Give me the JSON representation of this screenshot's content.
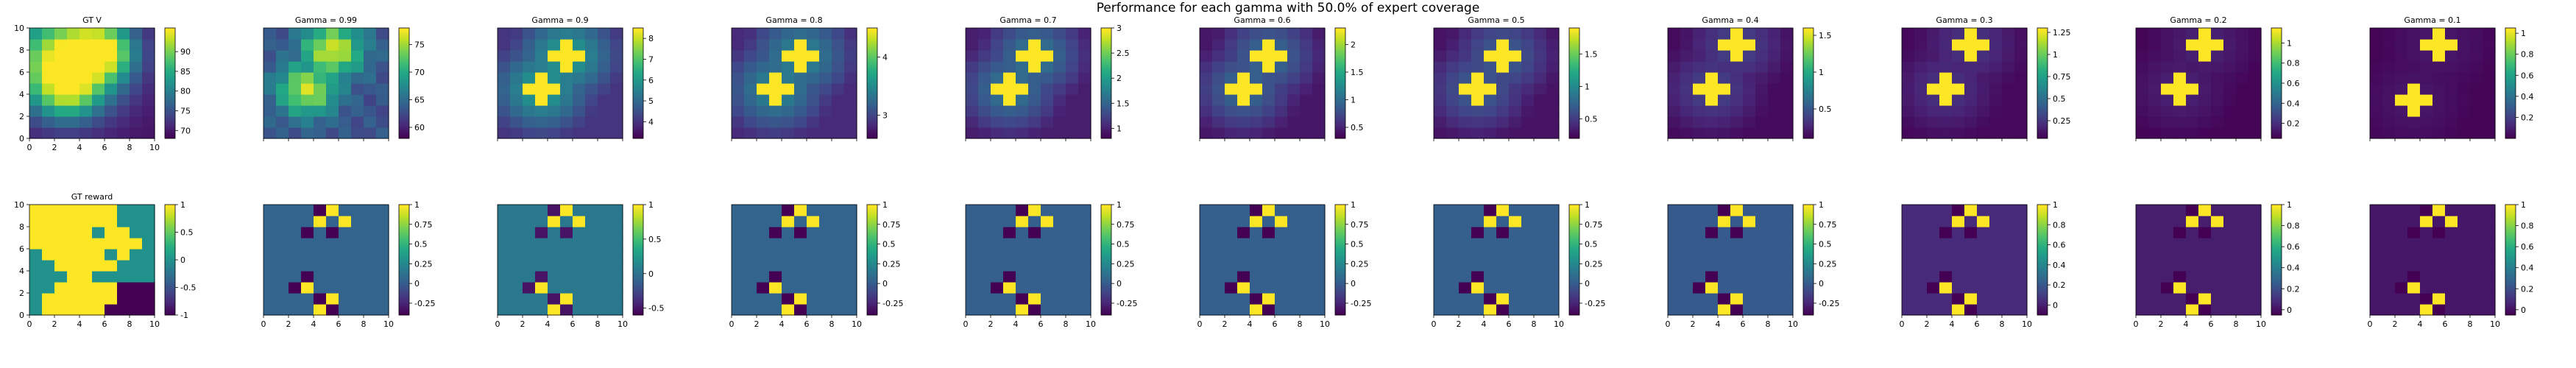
{
  "figure": {
    "suptitle": "Performance for each gamma with 50.0% of expert coverage"
  },
  "chart_data": [
    {
      "type": "heatmap",
      "title": "GT V",
      "colormap": "viridis",
      "grid": false,
      "xlim": [
        0,
        10
      ],
      "ylim": [
        0,
        10
      ],
      "xticks": [
        "0",
        "2",
        "4",
        "6",
        "8",
        "10"
      ],
      "yticks": [
        "0",
        "2",
        "4",
        "6",
        "8",
        "10"
      ],
      "clim": [
        68,
        96
      ],
      "cbar_ticks": [
        70,
        75,
        80,
        85,
        90
      ],
      "pattern": {
        "mode": "smooth",
        "peaks": [
          [
            3,
            7,
            1.0,
            4.5
          ],
          [
            6,
            8,
            0.55,
            2.5
          ],
          [
            3,
            4,
            0.35,
            2.5
          ]
        ],
        "base": 0.05
      }
    },
    {
      "type": "heatmap",
      "title": "Gamma = 0.99",
      "colormap": "viridis",
      "grid": false,
      "xlim": [
        0,
        10
      ],
      "ylim": [
        0,
        10
      ],
      "xticks": [
        "0",
        "2",
        "4",
        "6",
        "8",
        "10"
      ],
      "yticks": [
        "0",
        "2",
        "4",
        "6",
        "8",
        "10"
      ],
      "clim": [
        58,
        78
      ],
      "cbar_ticks": [
        60,
        65,
        70,
        75
      ],
      "pattern": {
        "mode": "blobs",
        "peaks": [
          [
            5.5,
            8,
            0.95,
            2.2
          ],
          [
            3.5,
            4.5,
            0.9,
            2.2
          ]
        ],
        "base": 0.25,
        "falloff": 0.55
      }
    },
    {
      "type": "heatmap",
      "title": "Gamma = 0.9",
      "colormap": "viridis",
      "grid": false,
      "xlim": [
        0,
        10
      ],
      "ylim": [
        0,
        10
      ],
      "xticks": [
        "0",
        "2",
        "4",
        "6",
        "8",
        "10"
      ],
      "yticks": [
        "0",
        "2",
        "4",
        "6",
        "8",
        "10"
      ],
      "clim": [
        3.2,
        8.5
      ],
      "cbar_ticks": [
        4,
        5,
        6,
        7,
        8
      ],
      "pattern": {
        "mode": "plus",
        "centers": [
          [
            5.5,
            7.5
          ],
          [
            3.5,
            4.5
          ]
        ],
        "base": 0.15,
        "falloff": 0.35
      }
    },
    {
      "type": "heatmap",
      "title": "Gamma = 0.8",
      "colormap": "viridis",
      "grid": false,
      "xlim": [
        0,
        10
      ],
      "ylim": [
        0,
        10
      ],
      "xticks": [
        "0",
        "2",
        "4",
        "6",
        "8",
        "10"
      ],
      "yticks": [
        "0",
        "2",
        "4",
        "6",
        "8",
        "10"
      ],
      "clim": [
        2.6,
        4.5
      ],
      "cbar_ticks": [
        3,
        4
      ],
      "pattern": {
        "mode": "plus",
        "centers": [
          [
            5.5,
            7.5
          ],
          [
            3.5,
            4.5
          ]
        ],
        "base": 0.12,
        "falloff": 0.3
      }
    },
    {
      "type": "heatmap",
      "title": "Gamma = 0.7",
      "colormap": "viridis",
      "grid": false,
      "xlim": [
        0,
        10
      ],
      "ylim": [
        0,
        10
      ],
      "xticks": [
        "0",
        "2",
        "4",
        "6",
        "8",
        "10"
      ],
      "yticks": [
        "0",
        "2",
        "4",
        "6",
        "8",
        "10"
      ],
      "clim": [
        0.8,
        3.0
      ],
      "cbar_ticks": [
        1.0,
        1.5,
        2.0,
        2.5,
        3.0
      ],
      "pattern": {
        "mode": "plus",
        "centers": [
          [
            5.5,
            7.5
          ],
          [
            3.5,
            4.5
          ]
        ],
        "base": 0.08,
        "falloff": 0.28
      }
    },
    {
      "type": "heatmap",
      "title": "Gamma = 0.6",
      "colormap": "viridis",
      "grid": false,
      "xlim": [
        0,
        10
      ],
      "ylim": [
        0,
        10
      ],
      "xticks": [
        "0",
        "2",
        "4",
        "6",
        "8",
        "10"
      ],
      "yticks": [
        "0",
        "2",
        "4",
        "6",
        "8",
        "10"
      ],
      "clim": [
        0.3,
        2.3
      ],
      "cbar_ticks": [
        0.5,
        1.0,
        1.5,
        2.0
      ],
      "pattern": {
        "mode": "plus",
        "centers": [
          [
            5.5,
            7.5
          ],
          [
            3.5,
            4.5
          ]
        ],
        "base": 0.06,
        "falloff": 0.25
      }
    },
    {
      "type": "heatmap",
      "title": "Gamma = 0.5",
      "colormap": "viridis",
      "grid": false,
      "xlim": [
        0,
        10
      ],
      "ylim": [
        0,
        10
      ],
      "xticks": [
        "0",
        "2",
        "4",
        "6",
        "8",
        "10"
      ],
      "yticks": [
        "0",
        "2",
        "4",
        "6",
        "8",
        "10"
      ],
      "clim": [
        0.2,
        1.9
      ],
      "cbar_ticks": [
        0.5,
        1.0,
        1.5
      ],
      "pattern": {
        "mode": "plus",
        "centers": [
          [
            5.5,
            7.5
          ],
          [
            3.5,
            4.5
          ]
        ],
        "base": 0.05,
        "falloff": 0.22
      }
    },
    {
      "type": "heatmap",
      "title": "Gamma = 0.4",
      "colormap": "viridis",
      "grid": false,
      "xlim": [
        0,
        10
      ],
      "ylim": [
        0,
        10
      ],
      "xticks": [
        "0",
        "2",
        "4",
        "6",
        "8",
        "10"
      ],
      "yticks": [
        "0",
        "2",
        "4",
        "6",
        "8",
        "10"
      ],
      "clim": [
        0.1,
        1.6
      ],
      "cbar_ticks": [
        0.5,
        1.0,
        1.5
      ],
      "pattern": {
        "mode": "plus",
        "centers": [
          [
            5.5,
            8.5
          ],
          [
            3.5,
            4.5
          ]
        ],
        "base": 0.03,
        "falloff": 0.15
      }
    },
    {
      "type": "heatmap",
      "title": "Gamma = 0.3",
      "colormap": "viridis",
      "grid": false,
      "xlim": [
        0,
        10
      ],
      "ylim": [
        0,
        10
      ],
      "xticks": [
        "0",
        "2",
        "4",
        "6",
        "8",
        "10"
      ],
      "yticks": [
        "0",
        "2",
        "4",
        "6",
        "8",
        "10"
      ],
      "clim": [
        0.05,
        1.3
      ],
      "cbar_ticks": [
        0.25,
        0.5,
        0.75,
        1.0,
        1.25
      ],
      "pattern": {
        "mode": "plus",
        "centers": [
          [
            5.5,
            8.5
          ],
          [
            3.5,
            4.5
          ]
        ],
        "base": 0.02,
        "falloff": 0.12
      }
    },
    {
      "type": "heatmap",
      "title": "Gamma = 0.2",
      "colormap": "viridis",
      "grid": false,
      "xlim": [
        0,
        10
      ],
      "ylim": [
        0,
        10
      ],
      "xticks": [
        "0",
        "2",
        "4",
        "6",
        "8",
        "10"
      ],
      "yticks": [
        "0",
        "2",
        "4",
        "6",
        "8",
        "10"
      ],
      "clim": [
        0.05,
        1.15
      ],
      "cbar_ticks": [
        0.2,
        0.4,
        0.6,
        0.8,
        1.0
      ],
      "pattern": {
        "mode": "plus",
        "centers": [
          [
            5.5,
            8.5
          ],
          [
            3.5,
            4.5
          ]
        ],
        "base": 0.01,
        "falloff": 0.08
      }
    },
    {
      "type": "heatmap",
      "title": "Gamma = 0.1",
      "colormap": "viridis",
      "grid": false,
      "xlim": [
        0,
        10
      ],
      "ylim": [
        0,
        10
      ],
      "xticks": [
        "0",
        "2",
        "4",
        "6",
        "8",
        "10"
      ],
      "yticks": [
        "0",
        "2",
        "4",
        "6",
        "8",
        "10"
      ],
      "clim": [
        0.0,
        1.05
      ],
      "cbar_ticks": [
        0.2,
        0.4,
        0.6,
        0.8,
        1.0
      ],
      "pattern": {
        "mode": "plus",
        "centers": [
          [
            5.5,
            8.5
          ],
          [
            3.5,
            3.5
          ]
        ],
        "base": 0.01,
        "falloff": 0.05
      }
    },
    {
      "type": "heatmap",
      "title": "GT reward",
      "colormap": "viridis",
      "grid": false,
      "xlim": [
        0,
        10
      ],
      "ylim": [
        0,
        10
      ],
      "xticks": [
        "0",
        "2",
        "4",
        "6",
        "8",
        "10"
      ],
      "yticks": [
        "0",
        "2",
        "4",
        "6",
        "8",
        "10"
      ],
      "clim": [
        -1.0,
        1.0
      ],
      "cbar_ticks": [
        -1.0,
        -0.5,
        0.0,
        0.5,
        1.0
      ],
      "pattern": {
        "mode": "gtreward"
      }
    },
    {
      "type": "heatmap",
      "title": "",
      "colormap": "viridis",
      "grid": false,
      "xlim": [
        0,
        10
      ],
      "ylim": [
        0,
        10
      ],
      "xticks": [
        "0",
        "2",
        "4",
        "6",
        "8",
        "10"
      ],
      "yticks": [
        "0",
        "2",
        "4",
        "6",
        "8",
        "10"
      ],
      "clim": [
        -0.4,
        1.0
      ],
      "cbar_ticks": [
        -0.25,
        0.0,
        0.25,
        0.5,
        0.75,
        1.0
      ],
      "pattern": {
        "mode": "reward",
        "base": 0.32
      }
    },
    {
      "type": "heatmap",
      "title": "",
      "colormap": "viridis",
      "grid": false,
      "xlim": [
        0,
        10
      ],
      "ylim": [
        0,
        10
      ],
      "xticks": [
        "0",
        "2",
        "4",
        "6",
        "8",
        "10"
      ],
      "yticks": [
        "0",
        "2",
        "4",
        "6",
        "8",
        "10"
      ],
      "clim": [
        -0.6,
        1.0
      ],
      "cbar_ticks": [
        -0.5,
        0.0,
        0.5,
        1.0
      ],
      "pattern": {
        "mode": "reward",
        "base": 0.4
      }
    },
    {
      "type": "heatmap",
      "title": "",
      "colormap": "viridis",
      "grid": false,
      "xlim": [
        0,
        10
      ],
      "ylim": [
        0,
        10
      ],
      "xticks": [
        "0",
        "2",
        "4",
        "6",
        "8",
        "10"
      ],
      "yticks": [
        "0",
        "2",
        "4",
        "6",
        "8",
        "10"
      ],
      "clim": [
        -0.4,
        1.0
      ],
      "cbar_ticks": [
        -0.25,
        0.0,
        0.25,
        0.5,
        0.75,
        1.0
      ],
      "pattern": {
        "mode": "reward",
        "base": 0.32
      }
    },
    {
      "type": "heatmap",
      "title": "",
      "colormap": "viridis",
      "grid": false,
      "xlim": [
        0,
        10
      ],
      "ylim": [
        0,
        10
      ],
      "xticks": [
        "0",
        "2",
        "4",
        "6",
        "8",
        "10"
      ],
      "yticks": [
        "0",
        "2",
        "4",
        "6",
        "8",
        "10"
      ],
      "clim": [
        -0.4,
        1.0
      ],
      "cbar_ticks": [
        -0.25,
        0.0,
        0.25,
        0.5,
        0.75,
        1.0
      ],
      "pattern": {
        "mode": "reward",
        "base": 0.3
      }
    },
    {
      "type": "heatmap",
      "title": "",
      "colormap": "viridis",
      "grid": false,
      "xlim": [
        0,
        10
      ],
      "ylim": [
        0,
        10
      ],
      "xticks": [
        "0",
        "2",
        "4",
        "6",
        "8",
        "10"
      ],
      "yticks": [
        "0",
        "2",
        "4",
        "6",
        "8",
        "10"
      ],
      "clim": [
        -0.4,
        1.0
      ],
      "cbar_ticks": [
        -0.25,
        0.0,
        0.25,
        0.5,
        0.75,
        1.0
      ],
      "pattern": {
        "mode": "reward",
        "base": 0.3
      }
    },
    {
      "type": "heatmap",
      "title": "",
      "colormap": "viridis",
      "grid": false,
      "xlim": [
        0,
        10
      ],
      "ylim": [
        0,
        10
      ],
      "xticks": [
        "0",
        "2",
        "4",
        "6",
        "8",
        "10"
      ],
      "yticks": [
        "0",
        "2",
        "4",
        "6",
        "8",
        "10"
      ],
      "clim": [
        -0.4,
        1.0
      ],
      "cbar_ticks": [
        -0.25,
        0.0,
        0.25,
        0.5,
        0.75,
        1.0
      ],
      "pattern": {
        "mode": "reward",
        "base": 0.3
      }
    },
    {
      "type": "heatmap",
      "title": "",
      "colormap": "viridis",
      "grid": false,
      "xlim": [
        0,
        10
      ],
      "ylim": [
        0,
        10
      ],
      "xticks": [
        "0",
        "2",
        "4",
        "6",
        "8",
        "10"
      ],
      "yticks": [
        "0",
        "2",
        "4",
        "6",
        "8",
        "10"
      ],
      "clim": [
        -0.4,
        1.0
      ],
      "cbar_ticks": [
        -0.25,
        0.0,
        0.25,
        0.5,
        0.75,
        1.0
      ],
      "pattern": {
        "mode": "reward",
        "base": 0.28
      }
    },
    {
      "type": "heatmap",
      "title": "",
      "colormap": "viridis",
      "grid": false,
      "xlim": [
        0,
        10
      ],
      "ylim": [
        0,
        10
      ],
      "xticks": [
        "0",
        "2",
        "4",
        "6",
        "8",
        "10"
      ],
      "yticks": [
        "0",
        "2",
        "4",
        "6",
        "8",
        "10"
      ],
      "clim": [
        -0.1,
        1.0
      ],
      "cbar_ticks": [
        0.0,
        0.2,
        0.4,
        0.6,
        0.8,
        1.0
      ],
      "pattern": {
        "mode": "reward",
        "base": 0.12
      }
    },
    {
      "type": "heatmap",
      "title": "",
      "colormap": "viridis",
      "grid": false,
      "xlim": [
        0,
        10
      ],
      "ylim": [
        0,
        10
      ],
      "xticks": [
        "0",
        "2",
        "4",
        "6",
        "8",
        "10"
      ],
      "yticks": [
        "0",
        "2",
        "4",
        "6",
        "8",
        "10"
      ],
      "clim": [
        -0.05,
        1.0
      ],
      "cbar_ticks": [
        0.0,
        0.2,
        0.4,
        0.6,
        0.8,
        1.0
      ],
      "pattern": {
        "mode": "reward",
        "base": 0.08
      }
    },
    {
      "type": "heatmap",
      "title": "",
      "colormap": "viridis",
      "grid": false,
      "xlim": [
        0,
        10
      ],
      "ylim": [
        0,
        10
      ],
      "xticks": [
        "0",
        "2",
        "4",
        "6",
        "8",
        "10"
      ],
      "yticks": [
        "0",
        "2",
        "4",
        "6",
        "8",
        "10"
      ],
      "clim": [
        -0.05,
        1.0
      ],
      "cbar_ticks": [
        0.0,
        0.2,
        0.4,
        0.6,
        0.8,
        1.0
      ],
      "pattern": {
        "mode": "reward",
        "base": 0.06
      }
    }
  ]
}
